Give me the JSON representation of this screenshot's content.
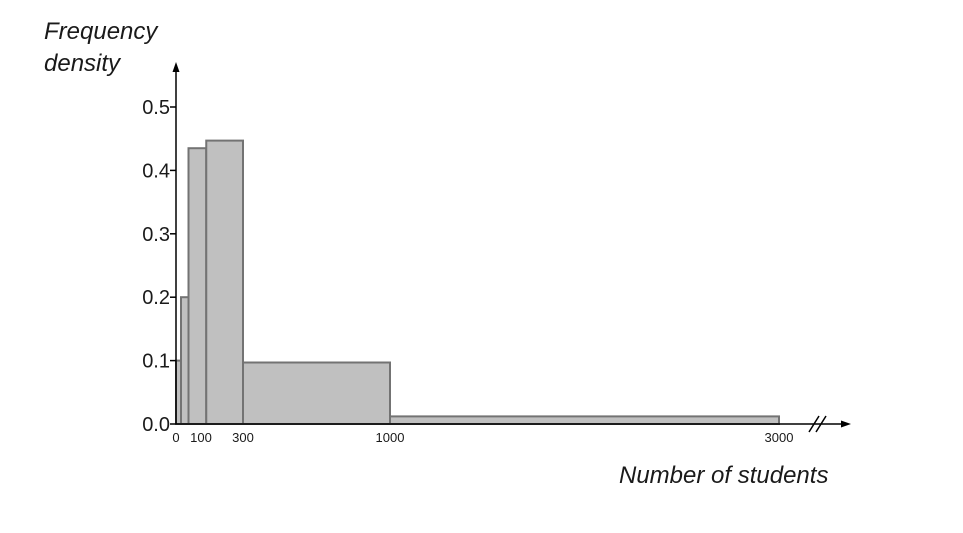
{
  "chart_data": {
    "type": "bar",
    "ylabel_lines": [
      "Frequency",
      "density"
    ],
    "xlabel": "Number of students",
    "ylim": [
      0,
      0.5
    ],
    "yticks": [
      "0.0",
      "0.1",
      "0.2",
      "0.3",
      "0.4",
      "0.5"
    ],
    "ytick_values": [
      0,
      0.1,
      0.2,
      0.3,
      0.4,
      0.5
    ],
    "xtick_labels": [
      "0",
      "100",
      "300",
      "1000",
      "3000"
    ],
    "xtick_values": [
      0,
      100,
      300,
      1000,
      3000
    ],
    "x_axis_broken": true,
    "bars": [
      {
        "x0": 0,
        "x1": 20,
        "value": 0.1
      },
      {
        "x0": 20,
        "x1": 50,
        "value": 0.2
      },
      {
        "x0": 50,
        "x1": 125,
        "value": 0.435
      },
      {
        "x0": 125,
        "x1": 300,
        "value": 0.447
      },
      {
        "x0": 300,
        "x1": 1000,
        "value": 0.097
      },
      {
        "x0": 1000,
        "x1": 3000,
        "value": 0.012
      }
    ],
    "bar_fill": "#c0c0c0",
    "bar_stroke": "#737373"
  }
}
